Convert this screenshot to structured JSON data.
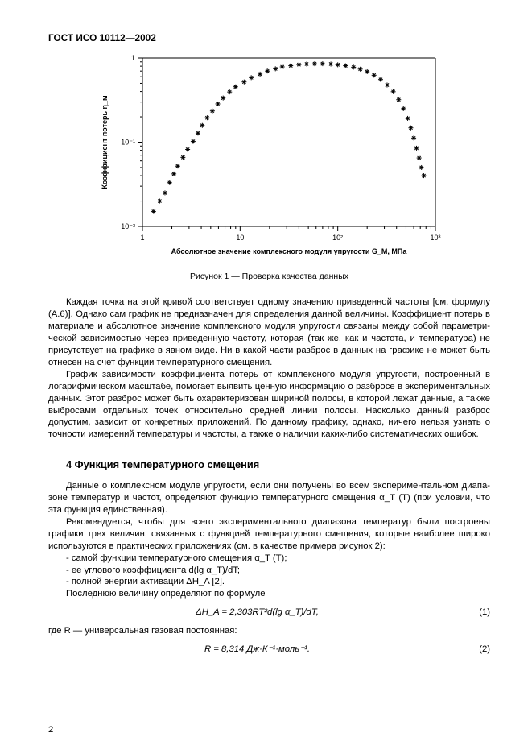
{
  "header": "ГОСТ ИСО 10112—2002",
  "chart": {
    "type": "scatter",
    "title": "",
    "x_label": "Абсолютное значение комплексного модуля упругости G_M, МПа",
    "y_label": "Коэффициент потерь η_м",
    "x_scale": "log",
    "y_scale": "log",
    "xlim": [
      1,
      1000
    ],
    "ylim": [
      0.01,
      1
    ],
    "x_ticks": [
      1,
      10,
      100,
      1000
    ],
    "x_tick_labels": [
      "1",
      "10",
      "10²",
      "10³"
    ],
    "y_ticks": [
      0.01,
      0.1,
      1
    ],
    "y_tick_labels": [
      "10⁻²",
      "10⁻¹",
      "1"
    ],
    "marker": "asterisk",
    "marker_size": 6,
    "marker_color": "#000000",
    "background_color": "#ffffff",
    "axis_color": "#000000",
    "tick_font_size": 9,
    "label_font_size": 9,
    "points": [
      [
        1.3,
        0.015
      ],
      [
        1.5,
        0.02
      ],
      [
        1.7,
        0.025
      ],
      [
        1.9,
        0.033
      ],
      [
        2.1,
        0.042
      ],
      [
        2.3,
        0.052
      ],
      [
        2.6,
        0.066
      ],
      [
        2.9,
        0.082
      ],
      [
        3.3,
        0.102
      ],
      [
        3.7,
        0.128
      ],
      [
        4.1,
        0.158
      ],
      [
        4.6,
        0.195
      ],
      [
        5.2,
        0.235
      ],
      [
        5.9,
        0.285
      ],
      [
        6.7,
        0.335
      ],
      [
        7.8,
        0.395
      ],
      [
        9.0,
        0.455
      ],
      [
        11,
        0.52
      ],
      [
        13,
        0.585
      ],
      [
        16,
        0.645
      ],
      [
        19,
        0.7
      ],
      [
        23,
        0.745
      ],
      [
        27,
        0.785
      ],
      [
        33,
        0.81
      ],
      [
        40,
        0.835
      ],
      [
        48,
        0.848
      ],
      [
        58,
        0.855
      ],
      [
        70,
        0.855
      ],
      [
        85,
        0.848
      ],
      [
        100,
        0.832
      ],
      [
        120,
        0.81
      ],
      [
        145,
        0.778
      ],
      [
        170,
        0.738
      ],
      [
        200,
        0.688
      ],
      [
        235,
        0.625
      ],
      [
        275,
        0.555
      ],
      [
        320,
        0.478
      ],
      [
        370,
        0.398
      ],
      [
        420,
        0.32
      ],
      [
        470,
        0.25
      ],
      [
        520,
        0.192
      ],
      [
        560,
        0.148
      ],
      [
        600,
        0.112
      ],
      [
        640,
        0.085
      ],
      [
        680,
        0.065
      ],
      [
        720,
        0.05
      ],
      [
        760,
        0.04
      ]
    ]
  },
  "caption": "Рисунок 1 — Проверка качества данных",
  "para1": "Каждая точка на этой кривой соответствует одному значению приведенной частоты [см. формулу (А.6)]. Однако сам график не предназначен для определения данной величины. Коэффициент потерь в материале и абсолютное значение комплексного модуля упругости связаны между собой параметри­ческой зависимостью через приведенную частоту, которая (так же, как и частота, и температура) не присутствует на графике в явном виде. Ни в какой части разброс в данных на графике не может быть отнесен на счет функции температурного смещения.",
  "para2": "График зависимости коэффициента потерь от комплексного модуля упругости, построенный в логарифмическом масштабе, помогает выявить ценную информацию о разбросе в экспериментальных данных. Этот разброс может быть охарактеризован шириной полосы, в которой лежат данные, а также выбросами отдельных точек относительно средней линии полосы. Насколько данный разброс допустим, зависит от конкретных приложений. По данному графику, однако, ничего нельзя узнать о точности измерений температуры и частоты, а также о наличии каких-либо систематических ошибок.",
  "section": "4  Функция температурного смещения",
  "para3": "Данные о комплексном модуле упругости, если они получены во всем экспериментальном диапа­зоне температур и частот, определяют функцию температурного смещения α_T (T) (при условии, что эта функция единственная).",
  "para4": "Рекомендуется, чтобы для всего экспериментального диапазона температур были построены графики трех величин, связанных с функцией температурного смещения, которые наиболее широко используются в практических приложениях (см. в качестве примера рисунок 2):",
  "bullet1": "-  самой функции температурного смещения α_T (T);",
  "bullet2": "-  ее углового коэффициента d(lg α_T)/dT;",
  "bullet3": "-  полной энергии активации ΔH_A [2].",
  "para5": "Последнюю величину определяют по формуле",
  "formula1": "ΔH_A = 2,303RT²d(lg α_T)/dT,",
  "formula1_num": "(1)",
  "where": "где R — универсальная газовая постоянная:",
  "formula2": "R = 8,314 Дж·К⁻¹·моль⁻¹.",
  "formula2_num": "(2)",
  "page_number": "2"
}
